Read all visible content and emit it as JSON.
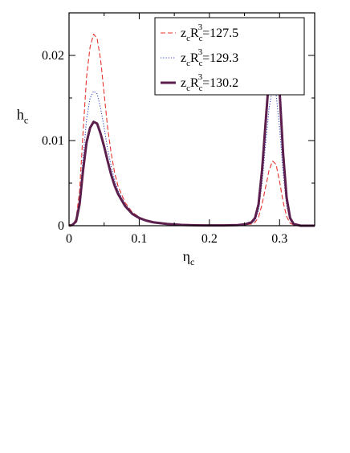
{
  "chart_data": {
    "type": "line",
    "xlabel": {
      "main": "η",
      "sub": "c"
    },
    "ylabel": {
      "main": "h",
      "sub": "c"
    },
    "xlim": [
      0,
      0.35
    ],
    "ylim": [
      0,
      0.025
    ],
    "xticks": [
      {
        "value": 0,
        "label": "0"
      },
      {
        "value": 0.1,
        "label": "0.1"
      },
      {
        "value": 0.2,
        "label": "0.2"
      },
      {
        "value": 0.3,
        "label": "0.3"
      }
    ],
    "yticks": [
      {
        "value": 0,
        "label": "0"
      },
      {
        "value": 0.01,
        "label": "0.01"
      },
      {
        "value": 0.02,
        "label": "0.02"
      }
    ],
    "legend_position": "top-right",
    "series": [
      {
        "name": {
          "a": "z",
          "a_sub": "c",
          "b": "R",
          "b_sub": "c",
          "sup": "3",
          "rest": "=127.5"
        },
        "color": "#e8332c",
        "style": "dashed",
        "x": [
          0,
          0.005,
          0.01,
          0.015,
          0.02,
          0.025,
          0.03,
          0.035,
          0.04,
          0.045,
          0.05,
          0.055,
          0.06,
          0.065,
          0.07,
          0.08,
          0.09,
          0.1,
          0.11,
          0.12,
          0.14,
          0.16,
          0.18,
          0.2,
          0.22,
          0.24,
          0.25,
          0.26,
          0.265,
          0.27,
          0.275,
          0.28,
          0.285,
          0.29,
          0.295,
          0.3,
          0.305,
          0.31,
          0.315,
          0.32,
          0.33,
          0.35
        ],
        "y": [
          0,
          0.0001,
          0.0008,
          0.004,
          0.011,
          0.0175,
          0.021,
          0.0225,
          0.022,
          0.0195,
          0.0155,
          0.0115,
          0.0085,
          0.0062,
          0.0046,
          0.0027,
          0.0016,
          0.001,
          0.0006,
          0.0004,
          0.0002,
          0.0001,
          5e-05,
          3e-05,
          3e-05,
          5e-05,
          0.0001,
          0.0002,
          0.0004,
          0.001,
          0.0025,
          0.0045,
          0.0065,
          0.0076,
          0.0072,
          0.0052,
          0.0028,
          0.0011,
          0.0003,
          0.0001,
          0,
          0
        ]
      },
      {
        "name": {
          "a": "z",
          "a_sub": "c",
          "b": "R",
          "b_sub": "c",
          "sup": "3",
          "rest": "=129.3"
        },
        "color": "#3347c4",
        "style": "dotted",
        "x": [
          0,
          0.005,
          0.01,
          0.015,
          0.02,
          0.025,
          0.03,
          0.035,
          0.04,
          0.045,
          0.05,
          0.055,
          0.06,
          0.065,
          0.07,
          0.08,
          0.09,
          0.1,
          0.11,
          0.12,
          0.14,
          0.16,
          0.18,
          0.2,
          0.22,
          0.24,
          0.25,
          0.26,
          0.265,
          0.27,
          0.275,
          0.28,
          0.285,
          0.29,
          0.295,
          0.3,
          0.305,
          0.31,
          0.315,
          0.32,
          0.33,
          0.35
        ],
        "y": [
          0,
          0.0001,
          0.0006,
          0.003,
          0.008,
          0.0125,
          0.015,
          0.0158,
          0.0155,
          0.0138,
          0.0115,
          0.009,
          0.007,
          0.0053,
          0.0041,
          0.0025,
          0.0015,
          0.0009,
          0.0006,
          0.0004,
          0.0002,
          0.0001,
          5e-05,
          3e-05,
          3e-05,
          5e-05,
          0.0001,
          0.0003,
          0.0006,
          0.0018,
          0.005,
          0.0095,
          0.0138,
          0.0162,
          0.0155,
          0.0115,
          0.0062,
          0.0024,
          0.0007,
          0.0002,
          0,
          0
        ]
      },
      {
        "name": {
          "a": "z",
          "a_sub": "c",
          "b": "R",
          "b_sub": "c",
          "sup": "3",
          "rest": "=130.2"
        },
        "color": "#5c1e4c",
        "style": "solid",
        "x": [
          0,
          0.005,
          0.01,
          0.015,
          0.02,
          0.025,
          0.03,
          0.035,
          0.04,
          0.045,
          0.05,
          0.055,
          0.06,
          0.065,
          0.07,
          0.08,
          0.09,
          0.1,
          0.11,
          0.12,
          0.14,
          0.16,
          0.18,
          0.2,
          0.22,
          0.24,
          0.25,
          0.26,
          0.265,
          0.27,
          0.275,
          0.28,
          0.285,
          0.29,
          0.295,
          0.3,
          0.305,
          0.31,
          0.315,
          0.32,
          0.33,
          0.35
        ],
        "y": [
          0,
          0.0001,
          0.0005,
          0.0025,
          0.0065,
          0.0098,
          0.0115,
          0.0122,
          0.012,
          0.0108,
          0.0093,
          0.0076,
          0.006,
          0.0047,
          0.0037,
          0.0023,
          0.0014,
          0.0009,
          0.0006,
          0.0004,
          0.0002,
          0.0001,
          5e-05,
          3e-05,
          4e-05,
          7e-05,
          0.00015,
          0.0004,
          0.0009,
          0.0025,
          0.0065,
          0.012,
          0.0175,
          0.0218,
          0.0212,
          0.0158,
          0.0085,
          0.0033,
          0.0009,
          0.0002,
          0,
          0
        ]
      }
    ]
  }
}
